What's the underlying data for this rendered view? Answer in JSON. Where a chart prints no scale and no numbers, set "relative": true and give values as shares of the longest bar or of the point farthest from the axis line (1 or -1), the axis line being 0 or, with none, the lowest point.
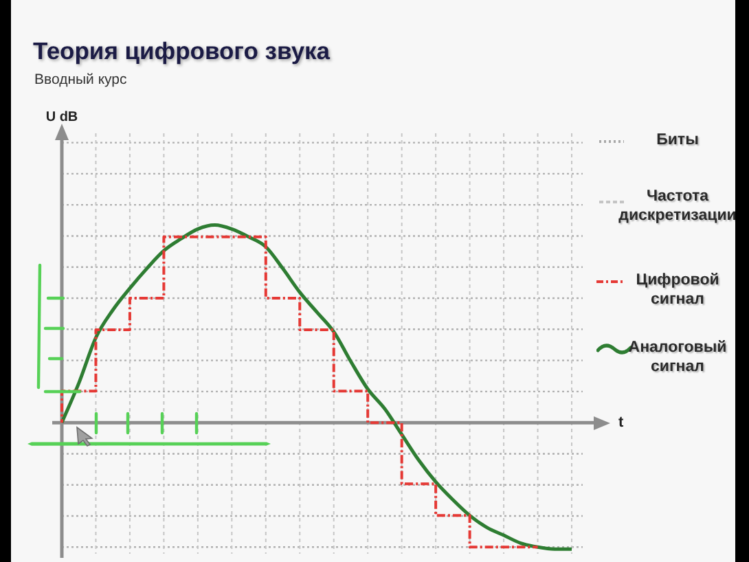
{
  "chart_data": {
    "type": "line",
    "title": "Теория цифрового звука",
    "subtitle": "Вводный курс",
    "xlabel": "t",
    "categories": [
      null,
      null,
      null,
      null,
      null,
      null,
      null,
      null,
      null,
      null,
      null,
      null,
      null,
      null,
      null,
      null,
      null,
      null,
      null,
      null,
      null,
      null,
      null,
      null,
      null,
      null,
      null,
      null,
      null,
      null,
      null
    ],
    "relative": true,
    "series": [
      {
        "name": "Цифровой сигнал",
        "type": "step",
        "color": "#e53935",
        "line_style": "dashed",
        "values": [
          0,
          0.16,
          0.16,
          0.47,
          0.47,
          0.63,
          0.63,
          0.94,
          0.94,
          0.94,
          0.94,
          0.94,
          0.94,
          0.63,
          0.63,
          0.47,
          0.47,
          0.16,
          0.16,
          0,
          0,
          -0.31,
          -0.31,
          -0.47,
          -0.47,
          -0.63,
          -0.63,
          -0.63,
          -0.63,
          null,
          null
        ]
      },
      {
        "name": "Аналоговый сигнал",
        "type": "line",
        "color": "#2e7d32",
        "values": [
          0,
          0.2,
          0.43,
          0.57,
          0.68,
          0.78,
          0.87,
          0.93,
          0.98,
          1,
          0.98,
          0.94,
          0.89,
          0.78,
          0.66,
          0.56,
          0.46,
          0.31,
          0.17,
          0.07,
          -0.06,
          -0.19,
          -0.3,
          -0.39,
          -0.47,
          -0.53,
          -0.57,
          -0.61,
          -0.63,
          -0.64,
          -0.64
        ]
      }
    ],
    "annotations": [
      "U dB",
      "Биты",
      "Частота дискретизации"
    ],
    "grid": true,
    "legend": "right",
    "marker": "none"
  }
}
